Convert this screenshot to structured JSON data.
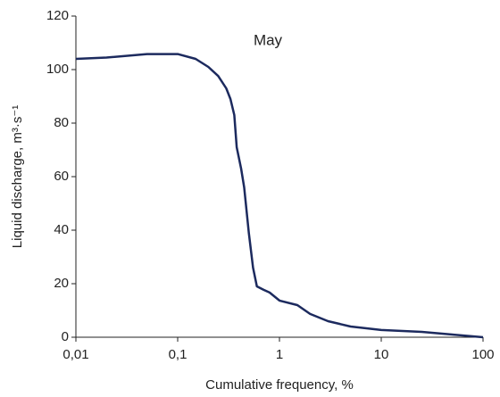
{
  "chart_data": {
    "type": "line",
    "x_label": "Cumulative frequency, %",
    "y_label": "Liquid discharge, m³·s⁻¹",
    "annotation": "May",
    "x_scale": "log",
    "xlim": [
      0.01,
      100
    ],
    "xticks": [
      {
        "value": 0.01,
        "label": "0,01"
      },
      {
        "value": 0.1,
        "label": "0,1"
      },
      1,
      10,
      100
    ],
    "ylim": [
      0,
      120
    ],
    "yticks": [
      0,
      20,
      40,
      60,
      80,
      100,
      120
    ],
    "grid": false,
    "color": "#1c2a5e",
    "x": [
      0.01,
      0.02,
      0.05,
      0.1,
      0.15,
      0.2,
      0.25,
      0.3,
      0.33,
      0.36,
      0.38,
      0.42,
      0.45,
      0.5,
      0.55,
      0.6,
      0.7,
      0.8,
      1,
      1.5,
      2,
      3,
      5,
      10,
      25,
      50,
      100
    ],
    "values": [
      104,
      104.5,
      105.8,
      105.8,
      104,
      101,
      97.6,
      93,
      89,
      83,
      71,
      63,
      56,
      39,
      26,
      19,
      17.7,
      16.7,
      13.7,
      12,
      8.7,
      6,
      4,
      2.7,
      2,
      1,
      0
    ]
  }
}
